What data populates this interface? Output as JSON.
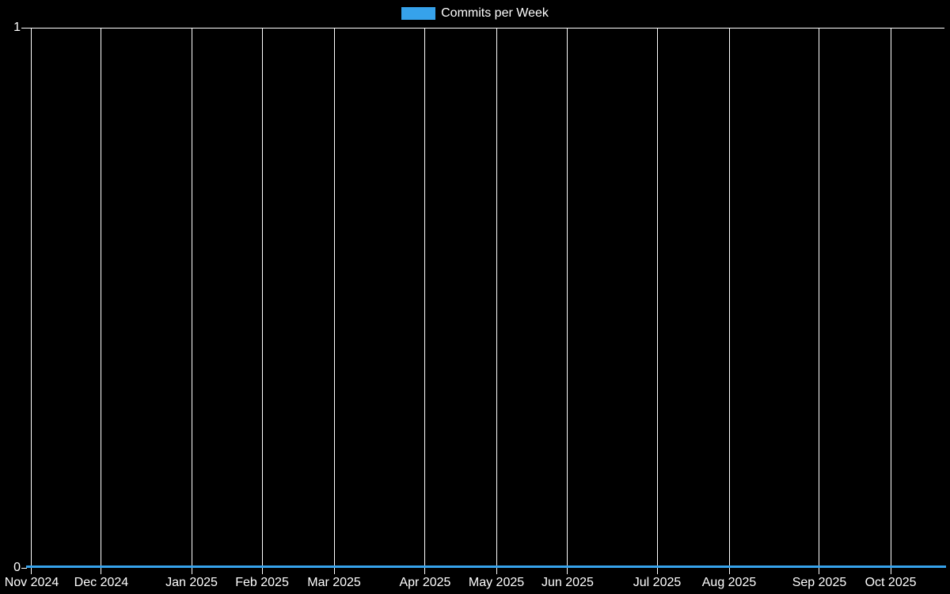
{
  "legend": {
    "label": "Commits per Week",
    "swatch_color": "#36a2eb"
  },
  "y_axis": {
    "top_label": "1",
    "bottom_label": "0"
  },
  "chart_data": {
    "type": "line",
    "title": "",
    "xlabel": "",
    "ylabel": "",
    "legend_entries": [
      "Commits per Week"
    ],
    "legend_position": "top-center",
    "background_color": "#000000",
    "text_color": "#ffffff",
    "gridline_color": "#ffffff",
    "grid": "vertical gridline at each month tick; horizontal gridline at y=1; flat series line at y=0",
    "categories": [
      "Nov 2024",
      "Dec 2024",
      "Jan 2025",
      "Feb 2025",
      "Mar 2025",
      "Apr 2025",
      "May 2025",
      "Jun 2025",
      "Jul 2025",
      "Aug 2025",
      "Sep 2025",
      "Oct 2025"
    ],
    "series": [
      {
        "name": "Commits per Week",
        "color": "#36a2eb",
        "values": [
          0,
          0,
          0,
          0,
          0,
          0,
          0,
          0,
          0,
          0,
          0,
          0
        ]
      }
    ],
    "y_ticks": [
      0,
      1
    ],
    "ylim": [
      0,
      1
    ]
  }
}
